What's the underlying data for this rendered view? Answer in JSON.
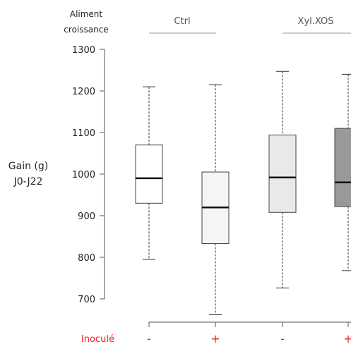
{
  "header": {
    "factor_label_line1": "Aliment",
    "factor_label_line2": "croissance",
    "group_ctrl": "Ctrl",
    "group_xyl": "Xyl.XOS"
  },
  "ylabel_line1": "Gain (g)",
  "ylabel_line2": "J0-J22",
  "row_label": "Inoculé",
  "colors": {
    "row_label": "#e8261c",
    "inoc_marks": "#e8261c",
    "group_line": "#bbbbbb",
    "axis": "#555555"
  },
  "chart_data": {
    "type": "boxplot",
    "ylim": [
      700,
      1300
    ],
    "yticks": [
      700,
      800,
      900,
      1000,
      1100,
      1200,
      1300
    ],
    "boxes": [
      {
        "group": "Ctrl",
        "inoculated": "-",
        "whisker_low": 795,
        "q1": 930,
        "median": 990,
        "q3": 1070,
        "whisker_high": 1210,
        "fill": "#ffffff"
      },
      {
        "group": "Ctrl",
        "inoculated": "+",
        "whisker_low": 662,
        "q1": 833,
        "median": 920,
        "q3": 1005,
        "whisker_high": 1215,
        "fill": "#f5f5f5"
      },
      {
        "group": "Xyl.XOS",
        "inoculated": "-",
        "whisker_low": 726,
        "q1": 908,
        "median": 992,
        "q3": 1094,
        "whisker_high": 1247,
        "fill": "#e9e9e9"
      },
      {
        "group": "Xyl.XOS",
        "inoculated": "+",
        "whisker_low": 768,
        "q1": 922,
        "median": 980,
        "q3": 1110,
        "whisker_high": 1240,
        "fill": "#999999"
      }
    ]
  }
}
